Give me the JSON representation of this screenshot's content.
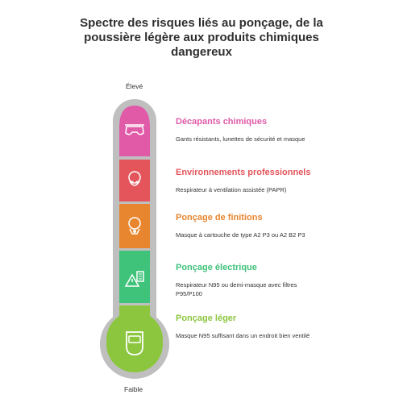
{
  "title": "Spectre des risques liés au ponçage, de la poussière légère aux produits chimiques dangereux",
  "scale": {
    "top": "Élevé",
    "bottom": "Faible"
  },
  "levels": [
    {
      "title": "Décapants chimiques",
      "description": "Gants résistants, lunettes de sécurité et masque",
      "color": "#e05aa8",
      "icon": "goggles-icon"
    },
    {
      "title": "Environnements professionnels",
      "description": "Respirateur à ventilation assistée (PAPR)",
      "color": "#e3555b",
      "icon": "respirator-mask-icon"
    },
    {
      "title": "Ponçage de finitions",
      "description": "Masque à cartouche de type A2 P3 ou A2 B2 P3",
      "color": "#e8862f",
      "icon": "cartridge-mask-icon"
    },
    {
      "title": "Ponçage électrique",
      "description": "Respirateur N95 ou demi-masque avec filtres P95/P100",
      "color": "#3fc27a",
      "icon": "warning-filter-icon"
    },
    {
      "title": "Ponçage léger",
      "description": "Masque N95 suffisant dans un endroit bien ventilé",
      "color": "#8cc63f",
      "icon": "face-shield-icon"
    }
  ]
}
